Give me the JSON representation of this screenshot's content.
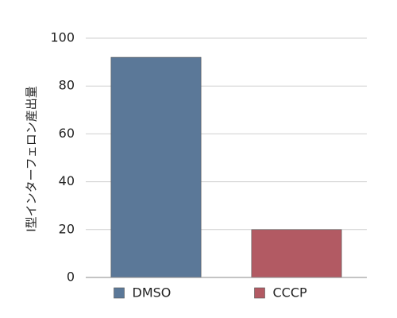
{
  "chart_data": {
    "type": "bar",
    "y_label": "I型インターフェロン産出量",
    "categories": [
      null
    ],
    "series": [
      {
        "name": "DMSO",
        "color": "#5b7898",
        "values": [
          92
        ]
      },
      {
        "name": "CCCP",
        "color": "#b25a63",
        "values": [
          20
        ]
      }
    ],
    "ylim": [
      0,
      100
    ],
    "yticks": [
      0,
      20,
      40,
      60,
      80,
      100
    ],
    "grid": true,
    "legend": "bottom"
  }
}
